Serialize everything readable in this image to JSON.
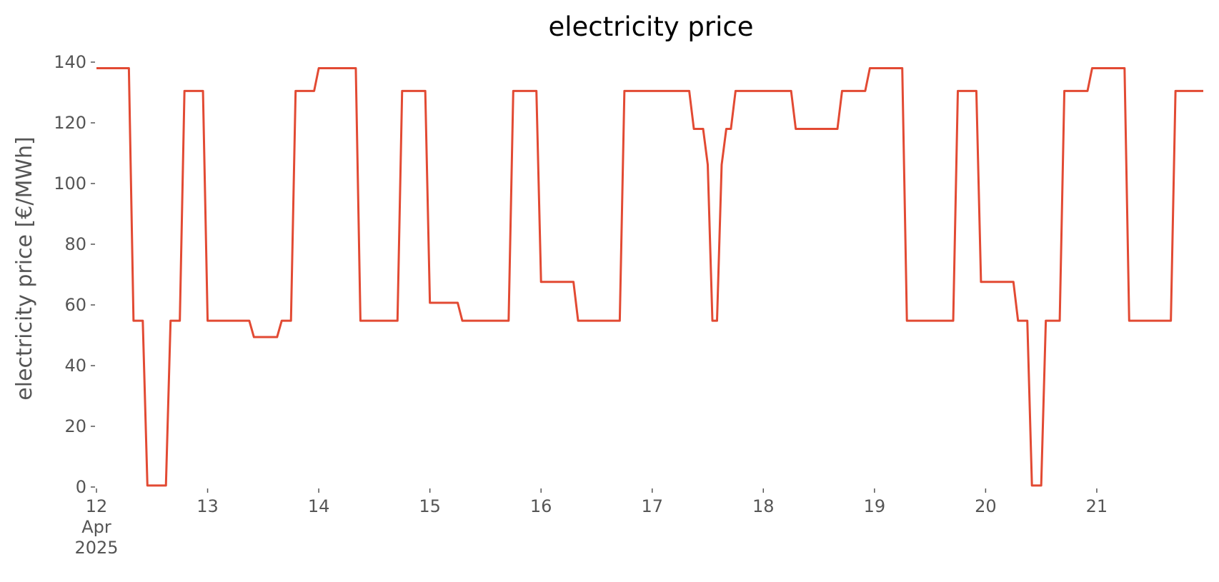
{
  "chart_data": {
    "type": "line",
    "title": "electricity price",
    "ylabel": "electricity price [€/MWh]",
    "x": [
      "2025-04-12T00:00",
      "2025-04-12T07:00",
      "2025-04-12T08:00",
      "2025-04-12T10:00",
      "2025-04-12T11:00",
      "2025-04-12T15:00",
      "2025-04-12T16:00",
      "2025-04-12T18:00",
      "2025-04-12T19:00",
      "2025-04-12T23:00",
      "2025-04-13T00:00",
      "2025-04-13T09:00",
      "2025-04-13T10:00",
      "2025-04-13T15:00",
      "2025-04-13T16:00",
      "2025-04-13T18:00",
      "2025-04-13T19:00",
      "2025-04-13T23:00",
      "2025-04-14T00:00",
      "2025-04-14T08:00",
      "2025-04-14T09:00",
      "2025-04-14T17:00",
      "2025-04-14T18:00",
      "2025-04-14T23:00",
      "2025-04-15T00:00",
      "2025-04-15T06:00",
      "2025-04-15T07:00",
      "2025-04-15T17:00",
      "2025-04-15T18:00",
      "2025-04-15T23:00",
      "2025-04-16T00:00",
      "2025-04-16T07:00",
      "2025-04-16T08:00",
      "2025-04-16T17:00",
      "2025-04-16T18:00",
      "2025-04-17T08:00",
      "2025-04-17T09:00",
      "2025-04-17T11:00",
      "2025-04-17T12:00",
      "2025-04-17T13:00",
      "2025-04-17T14:00",
      "2025-04-17T15:00",
      "2025-04-17T16:00",
      "2025-04-17T17:00",
      "2025-04-17T18:00",
      "2025-04-18T06:00",
      "2025-04-18T07:00",
      "2025-04-18T16:00",
      "2025-04-18T17:00",
      "2025-04-18T22:00",
      "2025-04-18T23:00",
      "2025-04-19T06:00",
      "2025-04-19T07:00",
      "2025-04-19T17:00",
      "2025-04-19T18:00",
      "2025-04-19T22:00",
      "2025-04-19T23:00",
      "2025-04-20T06:00",
      "2025-04-20T07:00",
      "2025-04-20T09:00",
      "2025-04-20T10:00",
      "2025-04-20T12:00",
      "2025-04-20T13:00",
      "2025-04-20T16:00",
      "2025-04-20T17:00",
      "2025-04-20T22:00",
      "2025-04-20T23:00",
      "2025-04-21T06:00",
      "2025-04-21T07:00",
      "2025-04-21T16:00",
      "2025-04-21T17:00",
      "2025-04-21T23:00"
    ],
    "series": [
      {
        "name": "electricity price",
        "color": "#E24A33",
        "values": [
          138,
          138,
          54.8,
          54.8,
          0.5,
          0.5,
          54.8,
          54.8,
          130.5,
          130.5,
          54.8,
          54.8,
          49.4,
          49.4,
          54.8,
          54.8,
          130.5,
          130.5,
          138,
          138,
          54.8,
          54.8,
          130.5,
          130.5,
          60.7,
          60.7,
          54.8,
          54.8,
          130.5,
          130.5,
          67.6,
          67.6,
          54.8,
          54.8,
          130.5,
          130.5,
          118,
          118,
          106.2,
          54.8,
          54.8,
          106.2,
          118,
          118,
          130.5,
          130.5,
          118,
          118,
          130.5,
          130.5,
          138,
          138,
          54.8,
          54.8,
          130.5,
          130.5,
          67.6,
          67.6,
          54.8,
          54.8,
          0.5,
          0.5,
          54.8,
          54.8,
          130.5,
          130.5,
          138,
          138,
          54.8,
          54.8,
          130.5,
          130.5
        ]
      }
    ],
    "xlim": [
      "2025-04-12T00:00",
      "2025-04-21T23:00"
    ],
    "xticks": [
      {
        "value": "2025-04-12T00:00",
        "label": "12\nApr\n2025"
      },
      {
        "value": "2025-04-13T00:00",
        "label": "13"
      },
      {
        "value": "2025-04-14T00:00",
        "label": "14"
      },
      {
        "value": "2025-04-15T00:00",
        "label": "15"
      },
      {
        "value": "2025-04-16T00:00",
        "label": "16"
      },
      {
        "value": "2025-04-17T00:00",
        "label": "17"
      },
      {
        "value": "2025-04-18T00:00",
        "label": "18"
      },
      {
        "value": "2025-04-19T00:00",
        "label": "19"
      },
      {
        "value": "2025-04-20T00:00",
        "label": "20"
      },
      {
        "value": "2025-04-21T00:00",
        "label": "21"
      }
    ],
    "ylim": [
      0,
      140
    ],
    "yticks": [
      0,
      20,
      40,
      60,
      80,
      100,
      120,
      140
    ],
    "grid": false
  }
}
